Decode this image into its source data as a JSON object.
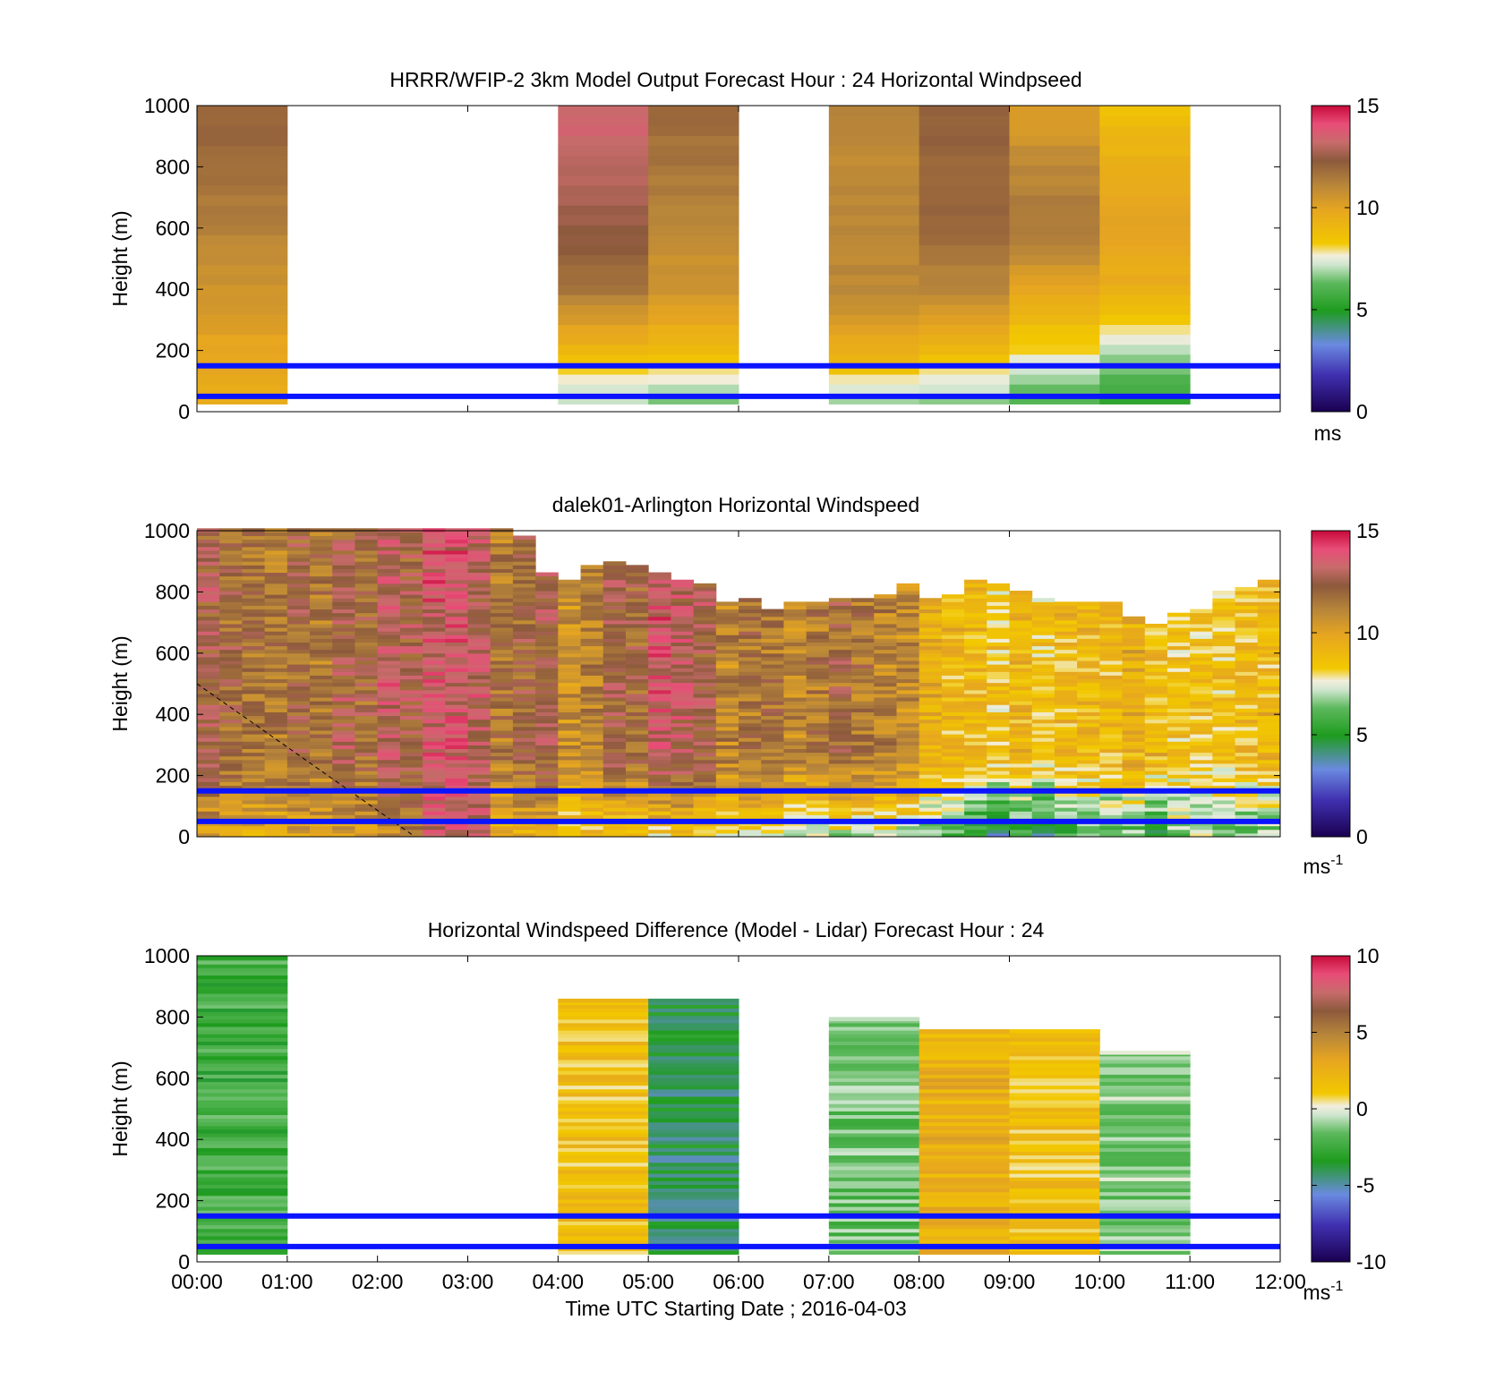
{
  "figure": {
    "xlabel": "Time UTC  Starting Date ; 2016-04-03",
    "xticks": [
      "00:00",
      "01:00",
      "02:00",
      "03:00",
      "04:00",
      "05:00",
      "06:00",
      "07:00",
      "08:00",
      "09:00",
      "10:00",
      "11:00",
      "12:00"
    ],
    "ylabel": "Height (m)",
    "yticks": [
      "0",
      "200",
      "400",
      "600",
      "800",
      "1000"
    ]
  },
  "colormap_speed": [
    "#1a0050",
    "#4030b0",
    "#6a8ae0",
    "#1e9c1e",
    "#5cb85c",
    "#cfe6cf",
    "#f2eedc",
    "#f2c800",
    "#e6a520",
    "#b8863a",
    "#8c5a3c",
    "#c86b6b",
    "#e84d78",
    "#c80a3a"
  ],
  "colormap_diff": [
    "#1a0050",
    "#4030b0",
    "#6a8ae0",
    "#1e9c1e",
    "#5cb85c",
    "#cfe6cf",
    "#f2eedc",
    "#f2c800",
    "#e6a520",
    "#b8863a",
    "#8c5a3c",
    "#c86b6b",
    "#e84d78",
    "#c80a3a"
  ],
  "chart_data": [
    {
      "type": "heatmap",
      "title": "HRRR/WFIP-2 3km Model Output   Forecast Hour : 24 Horizontal Windpseed",
      "xlabel": "",
      "ylabel": "Height (m)",
      "ylim": [
        0,
        1000
      ],
      "xlim": [
        "00:00",
        "12:00"
      ],
      "colorbar": {
        "range": [
          0,
          15
        ],
        "ticks": [
          "0",
          "5",
          "10",
          "15"
        ],
        "unit": "ms"
      },
      "reference_heights_m": [
        150,
        50
      ],
      "columns": [
        {
          "time_start": "00:00",
          "time_end": "01:00",
          "profile_ms": [
            9.5,
            9.8,
            10.5,
            11.2,
            11.8,
            12.0
          ]
        },
        {
          "time_start": "04:00",
          "time_end": "05:00",
          "profile_ms": [
            6.5,
            9.0,
            11.5,
            12.5,
            13.0,
            13.5
          ]
        },
        {
          "time_start": "05:00",
          "time_end": "06:00",
          "profile_ms": [
            6.0,
            9.0,
            10.5,
            11.0,
            11.5,
            12.0
          ]
        },
        {
          "time_start": "07:00",
          "time_end": "08:00",
          "profile_ms": [
            6.0,
            9.5,
            11.0,
            11.0,
            11.0,
            11.0
          ]
        },
        {
          "time_start": "08:00",
          "time_end": "09:00",
          "profile_ms": [
            6.0,
            9.0,
            11.0,
            12.0,
            12.0,
            12.0
          ]
        },
        {
          "time_start": "09:00",
          "time_end": "10:00",
          "profile_ms": [
            5.5,
            8.0,
            10.0,
            11.5,
            11.0,
            10.0
          ]
        },
        {
          "time_start": "10:00",
          "time_end": "11:00",
          "profile_ms": [
            5.0,
            7.0,
            9.5,
            10.0,
            9.5,
            8.5
          ]
        }
      ]
    },
    {
      "type": "heatmap",
      "title": "dalek01-Arlington  Horizontal Windspeed",
      "xlabel": "",
      "ylabel": "Height (m)",
      "ylim": [
        0,
        1000
      ],
      "xlim": [
        "00:00",
        "12:00"
      ],
      "colorbar": {
        "range": [
          0,
          15
        ],
        "ticks": [
          "0",
          "5",
          "10",
          "15"
        ],
        "unit": "ms-1"
      },
      "reference_heights_m": [
        150,
        50
      ],
      "dashed_line": {
        "x": [
          "00:00",
          "02:25"
        ],
        "y": [
          500,
          0
        ]
      },
      "column_times": [
        "00:00",
        "00:15",
        "00:30",
        "00:45",
        "01:00",
        "01:15",
        "01:30",
        "01:45",
        "02:00",
        "02:15",
        "02:30",
        "02:45",
        "03:00",
        "03:15",
        "03:30",
        "03:45",
        "04:00",
        "04:15",
        "04:30",
        "04:45",
        "05:00",
        "05:15",
        "05:30",
        "05:45",
        "06:00",
        "06:15",
        "06:30",
        "06:45",
        "07:00",
        "07:15",
        "07:30",
        "07:45",
        "08:00",
        "08:15",
        "08:30",
        "08:45",
        "09:00",
        "09:15",
        "09:30",
        "09:45",
        "10:00",
        "10:15",
        "10:30",
        "10:45",
        "11:00",
        "11:15",
        "11:30",
        "11:45"
      ],
      "top_height_m": [
        1000,
        1000,
        1000,
        1000,
        1000,
        1000,
        1000,
        1000,
        1000,
        1000,
        1000,
        1000,
        1000,
        1000,
        980,
        860,
        840,
        880,
        900,
        880,
        860,
        840,
        820,
        760,
        780,
        740,
        760,
        760,
        780,
        780,
        790,
        820,
        780,
        790,
        830,
        820,
        800,
        770,
        760,
        760,
        760,
        720,
        690,
        730,
        740,
        800,
        810,
        830
      ],
      "mean_speed_ms": [
        12.5,
        12.0,
        11.5,
        11.5,
        12.0,
        11.5,
        12.5,
        12.0,
        13.0,
        12.5,
        13.5,
        13.5,
        13.0,
        11.5,
        12.0,
        12.5,
        10.5,
        11.0,
        12.5,
        12.0,
        13.5,
        13.0,
        12.5,
        11.0,
        11.5,
        11.5,
        11.0,
        11.5,
        12.0,
        11.5,
        11.0,
        11.0,
        9.5,
        9.0,
        9.0,
        8.5,
        9.0,
        8.5,
        9.0,
        9.0,
        9.0,
        9.5,
        9.0,
        8.5,
        8.5,
        8.5,
        9.0,
        9.0
      ],
      "near_surface_speed_ms": [
        10.0,
        10.0,
        9.5,
        9.5,
        10.0,
        10.0,
        10.0,
        10.5,
        11.0,
        11.5,
        13.0,
        13.5,
        13.0,
        9.0,
        9.5,
        9.5,
        8.0,
        8.5,
        8.0,
        8.0,
        8.0,
        8.5,
        8.0,
        7.5,
        8.0,
        7.5,
        7.0,
        7.0,
        7.0,
        7.0,
        7.5,
        7.0,
        6.5,
        6.0,
        4.5,
        4.0,
        5.0,
        4.5,
        5.5,
        6.0,
        5.5,
        6.0,
        5.0,
        6.5,
        7.0,
        6.5,
        6.0,
        6.5
      ]
    },
    {
      "type": "heatmap",
      "title": "Horizontal Windspeed Difference (Model - Lidar) Forecast Hour : 24",
      "xlabel": "Time UTC  Starting Date ; 2016-04-03",
      "ylabel": "Height (m)",
      "ylim": [
        0,
        1000
      ],
      "xlim": [
        "00:00",
        "12:00"
      ],
      "colorbar": {
        "range": [
          -10,
          10
        ],
        "ticks": [
          "-10",
          "-5",
          "0",
          "5",
          "10"
        ],
        "unit": "ms-1"
      },
      "reference_heights_m": [
        150,
        50
      ],
      "columns": [
        {
          "time_start": "00:00",
          "time_end": "01:00",
          "top_m": 1000,
          "mean_diff_ms": -2.5
        },
        {
          "time_start": "04:00",
          "time_end": "05:00",
          "top_m": 860,
          "mean_diff_ms": 1.5
        },
        {
          "time_start": "05:00",
          "time_end": "06:00",
          "top_m": 860,
          "mean_diff_ms": -4.0
        },
        {
          "time_start": "07:00",
          "time_end": "08:00",
          "top_m": 800,
          "mean_diff_ms": -1.5
        },
        {
          "time_start": "08:00",
          "time_end": "09:00",
          "top_m": 760,
          "mean_diff_ms": 2.5
        },
        {
          "time_start": "09:00",
          "time_end": "10:00",
          "top_m": 760,
          "mean_diff_ms": 1.5
        },
        {
          "time_start": "10:00",
          "time_end": "11:00",
          "top_m": 690,
          "mean_diff_ms": -1.0
        }
      ]
    }
  ]
}
